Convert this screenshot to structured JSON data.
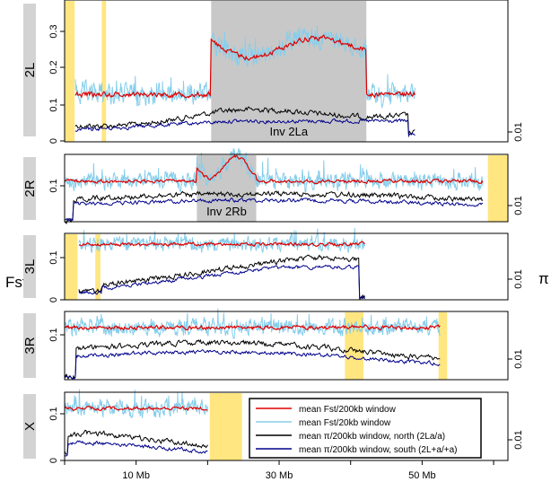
{
  "figure": {
    "y_left_label": "Fst",
    "y_right_label": "π",
    "x_axis_ticks": [
      {
        "value": 10,
        "label": "10 Mb"
      },
      {
        "value": 30,
        "label": "30 Mb"
      },
      {
        "value": 50,
        "label": "50 Mb"
      }
    ],
    "x_axis_extra_ticks": [
      0,
      20,
      40,
      60
    ],
    "x_range": [
      0,
      62
    ],
    "colors": {
      "fst200": "#dd0000",
      "fst20": "#87ceeb",
      "pi_north": "#000000",
      "pi_south": "#00008b",
      "highlight": "#ffe680",
      "inversion": "#c8c8c8",
      "strip": "#d3d3d3"
    }
  },
  "legend": {
    "placement": "lower-right of X panel",
    "items": [
      {
        "key": "fst200",
        "label": "mean Fst/200kb window"
      },
      {
        "key": "fst20",
        "label": "mean Fst/20kb window"
      },
      {
        "key": "pi_north",
        "label": "mean π/200kb window, north (2La/a)"
      },
      {
        "key": "pi_south",
        "label": "mean π/200kb window, south (2L+a/+a)"
      }
    ]
  },
  "chart_data": [
    {
      "type": "line",
      "arm": "2L",
      "x_range_data_mb": [
        1.5,
        49
      ],
      "y_ticks_left": [
        "0",
        "0.1",
        "0.2",
        "0.3"
      ],
      "ylim_left": [
        0,
        0.37
      ],
      "y_ticks_right": [
        "0.01"
      ],
      "highlights_mb": [
        [
          0,
          1.4
        ],
        [
          5.2,
          5.8
        ]
      ],
      "inversion": {
        "label": "Inv 2La",
        "start_mb": 20.5,
        "end_mb": 42.2
      },
      "fst200_mean": {
        "outside": 0.12,
        "inside": 0.25
      },
      "pi_north_range": [
        0.008,
        0.015
      ],
      "pi_south_range": [
        0.006,
        0.012
      ]
    },
    {
      "type": "line",
      "arm": "2R",
      "x_range_data_mb": [
        0,
        58.5
      ],
      "y_ticks_left": [
        "0.1"
      ],
      "ylim_left": [
        0,
        0.19
      ],
      "y_ticks_right": [
        "0.01"
      ],
      "highlights_mb": [
        [
          59.2,
          62
        ]
      ],
      "inversion": {
        "label": "Inv 2Rb",
        "start_mb": 18.5,
        "end_mb": 26.8
      },
      "fst200_mean": {
        "outside": 0.12,
        "inside": 0.15
      },
      "pi_north_range": [
        0.01,
        0.016
      ],
      "pi_south_range": [
        0.008,
        0.013
      ]
    },
    {
      "type": "line",
      "arm": "3L",
      "x_range_data_mb": [
        2,
        42
      ],
      "y_ticks_left": [
        "0",
        "0.1"
      ],
      "ylim_left": [
        0,
        0.15
      ],
      "y_ticks_right": [
        "0.01"
      ],
      "highlights_mb": [
        [
          0,
          1.8
        ],
        [
          4.3,
          5
        ]
      ],
      "fst200_mean": {
        "outside": 0.12
      },
      "pi_north_range": [
        0.008,
        0.015
      ],
      "pi_south_range": [
        0.006,
        0.013
      ]
    },
    {
      "type": "line",
      "arm": "3R",
      "x_range_data_mb": [
        0,
        52.5
      ],
      "y_ticks_left": [
        "0.1"
      ],
      "ylim_left": [
        0,
        0.16
      ],
      "y_ticks_right": [
        "0.01"
      ],
      "highlights_mb": [
        [
          39.2,
          41.8
        ],
        [
          52.3,
          53.5
        ]
      ],
      "fst200_mean": {
        "outside": 0.12
      },
      "pi_north_range": [
        0.01,
        0.016
      ],
      "pi_south_range": [
        0.008,
        0.014
      ]
    },
    {
      "type": "line",
      "arm": "X",
      "x_range_data_mb": [
        0,
        20
      ],
      "y_ticks_left": [
        "0",
        "0.1"
      ],
      "ylim_left": [
        0,
        0.16
      ],
      "y_ticks_right": [
        "0.01"
      ],
      "highlights_mb": [
        [
          20.3,
          24.8
        ]
      ],
      "fst200_mean": {
        "outside": 0.12
      },
      "pi_north_range": [
        0.012,
        0.018
      ],
      "pi_south_range": [
        0.008,
        0.014
      ]
    }
  ]
}
